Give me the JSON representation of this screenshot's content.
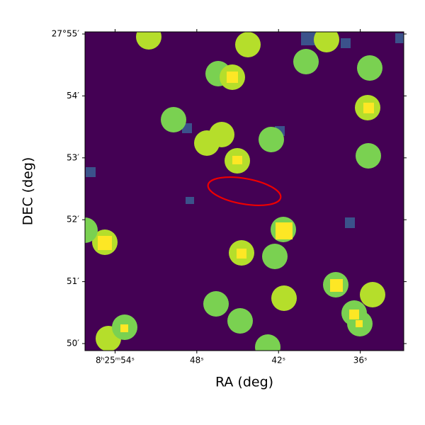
{
  "chart_data": {
    "type": "image",
    "xlabel": "RA (deg)",
    "ylabel": "DEC (deg)",
    "xlim": [
      126.4842,
      126.3867
    ],
    "ylim": [
      27.83143,
      27.91724
    ],
    "xticks": [
      {
        "value": 126.475,
        "label": "8ʰ25ᵐ54ˢ"
      },
      {
        "value": 126.45,
        "label": "48ˢ"
      },
      {
        "value": 126.425,
        "label": "42ˢ"
      },
      {
        "value": 126.4,
        "label": "36ˢ"
      }
    ],
    "yticks": [
      {
        "value": 27.91667,
        "label": "27°55′"
      },
      {
        "value": 27.9,
        "label": "54′"
      },
      {
        "value": 27.88333,
        "label": "53′"
      },
      {
        "value": 27.86667,
        "label": "52′"
      },
      {
        "value": 27.85,
        "label": "51′"
      },
      {
        "value": 27.83333,
        "label": "50′"
      }
    ]
  }
}
